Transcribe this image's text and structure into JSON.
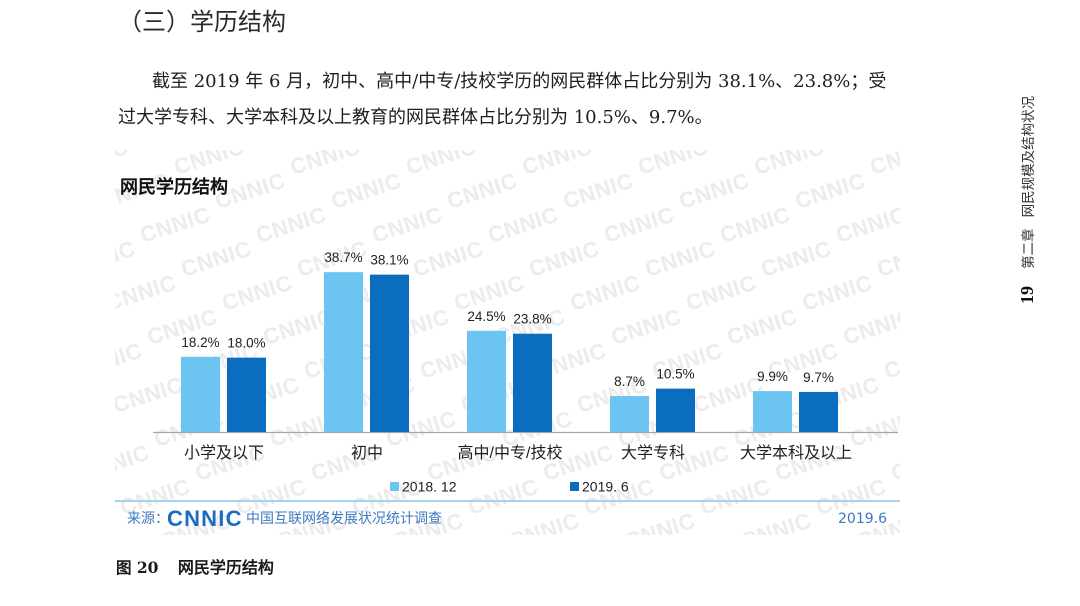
{
  "page": {
    "heading": "（三）学历结构",
    "paragraph_lines": [
      "截至 2019 年 6 月，初中、高中/中专/技校学历的网民群体占比分别为 38.1%、23.8%；受",
      "过大学专科、大学本科及以上教育的网民群体占比分别为 10.5%、9.7%。"
    ],
    "figure_caption": {
      "number": "图 20",
      "title": "网民学历结构"
    },
    "running_header": {
      "page_number": "19",
      "chapter": "第二章",
      "chapter_title": "网民规模及结构状况"
    }
  },
  "watermark": {
    "text": "CNNIC"
  },
  "source": {
    "label": "来源：",
    "logo": "CNNIC",
    "name": "中国互联网络发展状况统计调查",
    "date": "2019.6"
  },
  "colors": {
    "axis": "#a6a6a6",
    "source_rule": "#a8d3f0",
    "source_text": "#3e79bf",
    "logo": "#1c6cc0",
    "watermark": "#ececec"
  },
  "chart_data": {
    "type": "bar",
    "title": "网民学历结构",
    "categories": [
      "小学及以下",
      "初中",
      "高中/中专/技校",
      "大学专科",
      "大学本科及以上"
    ],
    "series": [
      {
        "name": "2018. 12",
        "color": "#6cc4f0",
        "values": [
          18.2,
          38.7,
          24.5,
          8.7,
          9.9
        ],
        "data_labels": [
          "18.2%",
          "38.7%",
          "24.5%",
          "8.7%",
          "9.9%"
        ]
      },
      {
        "name": "2019. 6",
        "color": "#0b6dbd",
        "values": [
          18.0,
          38.1,
          23.8,
          10.5,
          9.7
        ],
        "data_labels": [
          "18.0%",
          "38.1%",
          "23.8%",
          "10.5%",
          "9.7%"
        ]
      }
    ],
    "ylim": [
      0,
      40
    ],
    "grid": false,
    "legend": "bottom"
  }
}
